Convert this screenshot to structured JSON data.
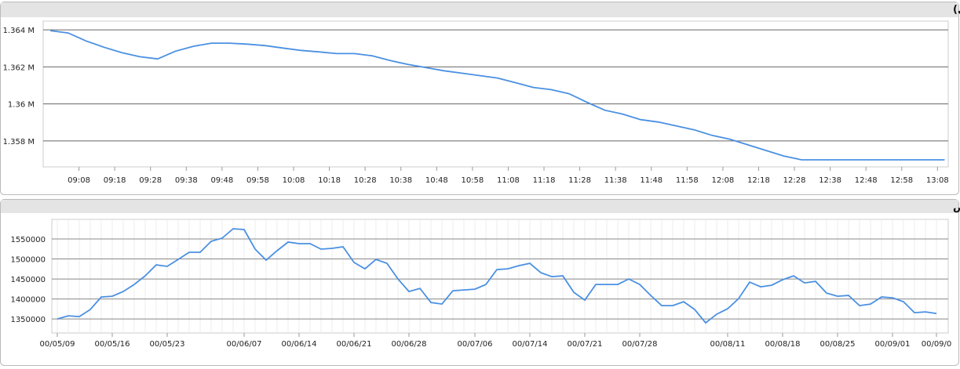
{
  "chart_data": [
    {
      "type": "line",
      "title": "شاخص کل (آخرین روز معاملاتی)",
      "x": [
        "09:00",
        "09:05",
        "09:10",
        "09:15",
        "09:20",
        "09:25",
        "09:30",
        "09:35",
        "09:40",
        "09:45",
        "09:50",
        "09:55",
        "10:00",
        "10:05",
        "10:10",
        "10:15",
        "10:20",
        "10:25",
        "10:30",
        "10:35",
        "10:40",
        "10:45",
        "10:50",
        "10:55",
        "11:00",
        "11:05",
        "11:10",
        "11:15",
        "11:20",
        "11:25",
        "11:30",
        "11:35",
        "11:40",
        "11:45",
        "11:50",
        "11:55",
        "12:00",
        "12:05",
        "12:10",
        "12:15",
        "12:20",
        "12:25",
        "12:30",
        "12:35",
        "12:40",
        "12:45",
        "12:50",
        "12:55",
        "13:00",
        "13:05",
        "13:10"
      ],
      "values": [
        1363960,
        1363830,
        1363400,
        1363060,
        1362770,
        1362550,
        1362430,
        1362850,
        1363110,
        1363280,
        1363280,
        1363230,
        1363150,
        1363020,
        1362890,
        1362810,
        1362720,
        1362720,
        1362600,
        1362340,
        1362130,
        1361960,
        1361790,
        1361660,
        1361530,
        1361400,
        1361150,
        1360890,
        1360770,
        1360550,
        1360090,
        1359660,
        1359450,
        1359150,
        1359020,
        1358810,
        1358600,
        1358300,
        1358090,
        1357790,
        1357490,
        1357190,
        1356980,
        1356980,
        1356980,
        1356980,
        1356980,
        1356980,
        1356980,
        1356980,
        1356980
      ],
      "color": "#4a90e2",
      "xlim": [
        "08:58",
        "13:11"
      ],
      "xticks": [
        "09:08",
        "09:18",
        "09:28",
        "09:38",
        "09:48",
        "09:58",
        "10:08",
        "10:18",
        "10:28",
        "10:38",
        "10:48",
        "10:58",
        "11:08",
        "11:18",
        "11:28",
        "11:38",
        "11:48",
        "11:58",
        "12:08",
        "12:18",
        "12:28",
        "12:38",
        "12:48",
        "12:58",
        "13:08"
      ],
      "ylim": [
        1356600,
        1364470
      ],
      "yticks": [
        {
          "value": 1358000,
          "label": "1.358 M"
        },
        {
          "value": 1360000,
          "label": "1.36 M"
        },
        {
          "value": 1362000,
          "label": "1.362 M"
        },
        {
          "value": 1364000,
          "label": "1.364 M"
        }
      ],
      "grid": true
    },
    {
      "type": "line",
      "title": "نمودار شاخص",
      "categories": [
        "00/05/09",
        null,
        null,
        null,
        null,
        "00/05/16",
        null,
        null,
        null,
        null,
        "00/05/23",
        null,
        null,
        null,
        null,
        null,
        null,
        "00/06/07",
        null,
        null,
        null,
        null,
        "00/06/14",
        null,
        null,
        null,
        null,
        "00/06/21",
        null,
        null,
        null,
        null,
        "00/06/28",
        null,
        null,
        null,
        null,
        null,
        "00/07/06",
        null,
        null,
        null,
        null,
        "00/07/14",
        null,
        null,
        null,
        null,
        "00/07/21",
        null,
        null,
        null,
        null,
        "00/07/28",
        null,
        null,
        null,
        null,
        null,
        null,
        null,
        "00/08/11",
        null,
        null,
        null,
        null,
        "00/08/18",
        null,
        null,
        null,
        null,
        "00/08/25",
        null,
        null,
        null,
        null,
        "00/09/01",
        null,
        null,
        null,
        "00/09/0"
      ],
      "values": [
        1350000,
        1357800,
        1356000,
        1373500,
        1404900,
        1406900,
        1418600,
        1436300,
        1457800,
        1485300,
        1481400,
        1499000,
        1516700,
        1516700,
        1544100,
        1552000,
        1575500,
        1573500,
        1524500,
        1497100,
        1520600,
        1542200,
        1538200,
        1538200,
        1524500,
        1526500,
        1530400,
        1491200,
        1475500,
        1499000,
        1489200,
        1450000,
        1418600,
        1426500,
        1391200,
        1387300,
        1420600,
        1422500,
        1424500,
        1436300,
        1473500,
        1475500,
        1483300,
        1489200,
        1465700,
        1455900,
        1457800,
        1416700,
        1397100,
        1436300,
        1436300,
        1436300,
        1450000,
        1436300,
        1408800,
        1383300,
        1383300,
        1393100,
        1373500,
        1340200,
        1361800,
        1375500,
        1401000,
        1442200,
        1430400,
        1434300,
        1448000,
        1457800,
        1440200,
        1444100,
        1414700,
        1406900,
        1408800,
        1383300,
        1387300,
        1404900,
        1402900,
        1393100,
        1365700,
        1367600,
        1363700
      ],
      "color": "#4a90e2",
      "ylim": [
        1315000,
        1599000
      ],
      "yticks": [
        1350000,
        1400000,
        1450000,
        1500000,
        1550000
      ],
      "grid": true
    }
  ]
}
